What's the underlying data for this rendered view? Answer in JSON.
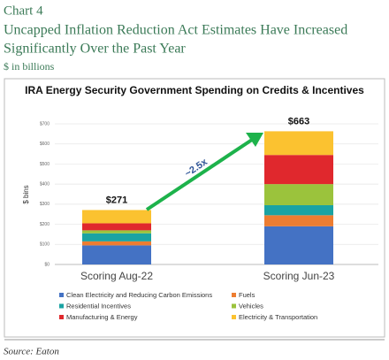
{
  "header": {
    "label": "Chart 4",
    "title_lines": [
      "Uncapped Inflation Reduction Act Estimates Have Increased",
      "Significantly Over the Past Year"
    ],
    "subtitle": "$ in billions"
  },
  "chart_data": {
    "type": "stacked_bar",
    "title": "IRA Energy Security Government Spending on Credits & Incentives",
    "y_label": "$ bins",
    "categories": [
      "Scoring Aug-22",
      "Scoring Jun-23"
    ],
    "series": [
      {
        "name": "Clean Electricity and Reducing Carbon Emissions",
        "color": "#4472c4",
        "values": [
          95,
          190
        ]
      },
      {
        "name": "Fuels",
        "color": "#ed7d31",
        "values": [
          20,
          55
        ]
      },
      {
        "name": "Residential Incentives",
        "color": "#1aa3a3",
        "values": [
          40,
          50
        ]
      },
      {
        "name": "Vehicles",
        "color": "#9bc33c",
        "values": [
          15,
          105
        ]
      },
      {
        "name": "Manufacturing & Energy",
        "color": "#e0282d",
        "values": [
          35,
          145
        ]
      },
      {
        "name": "Electricity & Transportation",
        "color": "#fbc230",
        "values": [
          66,
          118
        ]
      }
    ],
    "totals": {
      "values": [
        271,
        663
      ],
      "value_labels": [
        "$271",
        "$663"
      ]
    },
    "annotation": "~2.5x",
    "ylim": [
      0,
      700
    ],
    "yticks": [
      {
        "value": 0,
        "label": "$0"
      },
      {
        "value": 100,
        "label": "$100"
      },
      {
        "value": 200,
        "label": "$200"
      },
      {
        "value": 300,
        "label": "$300"
      },
      {
        "value": 400,
        "label": "$400"
      },
      {
        "value": 500,
        "label": "$500"
      },
      {
        "value": 600,
        "label": "$600"
      },
      {
        "value": 700,
        "label": "$700"
      }
    ],
    "grid": true
  },
  "footer": {
    "source": "Source:  Eaton"
  }
}
